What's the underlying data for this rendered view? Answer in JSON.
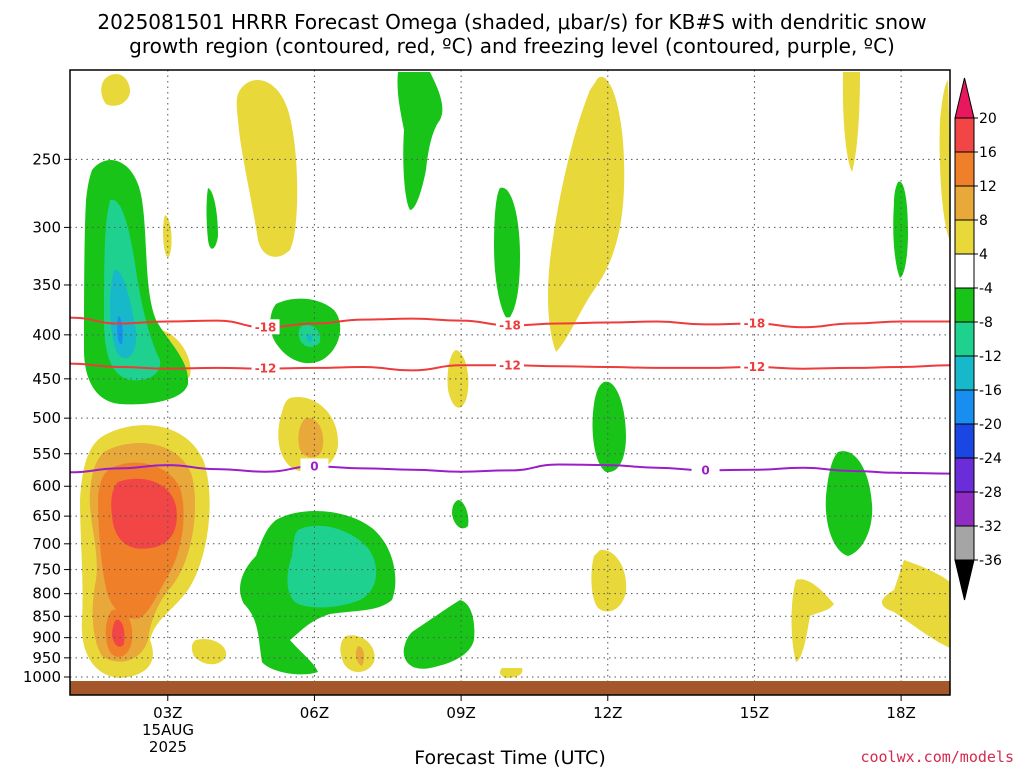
{
  "chart": {
    "title_line1": "2025081501 HRRR Forecast Omega (shaded, μbar/s) for KB#S with dendritic snow",
    "title_line2": "growth region (contoured, red, ºC) and freezing level (contoured, purple, ºC)",
    "xlabel": "Forecast Time (UTC)",
    "date_line1": "15AUG",
    "date_line2": "2025",
    "credit": "coolwx.com/models"
  },
  "chart_data": {
    "type": "heatmap",
    "title": "2025081501 HRRR Forecast Omega (shaded, μbar/s) for KB#S with dendritic snow growth region (contoured, red, ºC) and freezing level (contoured, purple, ºC)",
    "xlabel": "Forecast Time (UTC)",
    "ylabel": "",
    "x_unit": "hours UTC since 00Z 15AUG2025",
    "xlim": [
      1,
      19
    ],
    "y_scale": "log",
    "ylim": [
      1000,
      200
    ],
    "x_ticks": [
      {
        "value": 3,
        "label": "03Z"
      },
      {
        "value": 6,
        "label": "06Z"
      },
      {
        "value": 9,
        "label": "09Z"
      },
      {
        "value": 12,
        "label": "12Z"
      },
      {
        "value": 15,
        "label": "15Z"
      },
      {
        "value": 18,
        "label": "18Z"
      }
    ],
    "y_ticks": [
      250,
      300,
      350,
      400,
      450,
      500,
      550,
      600,
      650,
      700,
      750,
      800,
      850,
      900,
      950,
      1000
    ],
    "grid": true,
    "colorbar": {
      "labels": [
        20,
        16,
        12,
        8,
        4,
        -4,
        -8,
        -12,
        -16,
        -20,
        -24,
        -28,
        -32,
        -36
      ],
      "colors": [
        "#e8185e",
        "#f24545",
        "#f07f2a",
        "#e8a83a",
        "#e8d83a",
        "#ffffff",
        "#17c417",
        "#1ed18f",
        "#17b8c9",
        "#188ff0",
        "#1a46e3",
        "#6b2cd9",
        "#8f2cc2",
        "#a5a5a5",
        "#000000"
      ]
    },
    "contours": [
      {
        "name": "-18",
        "color": "#ee3b3b",
        "labels": [
          "-18",
          "-18",
          "-18"
        ],
        "points": [
          [
            1,
            382
          ],
          [
            2,
            388
          ],
          [
            3,
            386
          ],
          [
            4,
            385
          ],
          [
            5,
            392
          ],
          [
            6,
            388
          ],
          [
            7,
            384
          ],
          [
            8,
            383
          ],
          [
            9,
            385
          ],
          [
            10,
            390
          ],
          [
            11,
            388
          ],
          [
            12,
            387
          ],
          [
            13,
            386
          ],
          [
            14,
            389
          ],
          [
            15,
            388
          ],
          [
            16,
            392
          ],
          [
            17,
            388
          ],
          [
            18,
            386
          ],
          [
            19,
            386
          ]
        ]
      },
      {
        "name": "-12",
        "color": "#ee3b3b",
        "labels": [
          "-12",
          "-12",
          "-12"
        ],
        "points": [
          [
            1,
            432
          ],
          [
            2,
            436
          ],
          [
            3,
            438
          ],
          [
            4,
            437
          ],
          [
            5,
            438
          ],
          [
            6,
            437
          ],
          [
            7,
            436
          ],
          [
            8,
            440
          ],
          [
            9,
            434
          ],
          [
            10,
            434
          ],
          [
            11,
            435
          ],
          [
            12,
            436
          ],
          [
            13,
            437
          ],
          [
            14,
            437
          ],
          [
            15,
            436
          ],
          [
            16,
            438
          ],
          [
            17,
            437
          ],
          [
            18,
            436
          ],
          [
            19,
            434
          ]
        ]
      },
      {
        "name": "0",
        "color": "#9b1fc8",
        "labels": [
          "0",
          "0"
        ],
        "points": [
          [
            1,
            578
          ],
          [
            2,
            572
          ],
          [
            3,
            567
          ],
          [
            4,
            573
          ],
          [
            5,
            577
          ],
          [
            6,
            569
          ],
          [
            7,
            572
          ],
          [
            8,
            574
          ],
          [
            9,
            577
          ],
          [
            10,
            575
          ],
          [
            11,
            566
          ],
          [
            12,
            567
          ],
          [
            13,
            571
          ],
          [
            14,
            575
          ],
          [
            15,
            574
          ],
          [
            16,
            571
          ],
          [
            17,
            576
          ],
          [
            18,
            579
          ],
          [
            19,
            580
          ]
        ]
      }
    ],
    "omega_regions": [
      {
        "level": 4,
        "color": "#e8d83a",
        "center": [
          2.1,
          720
        ],
        "half_width_h": 1.0,
        "p_range": [
          990,
          440
        ]
      },
      {
        "level": 8,
        "color": "#e8a83a",
        "center": [
          2.2,
          680
        ],
        "half_width_h": 0.7,
        "p_range": [
          970,
          480
        ]
      },
      {
        "level": 12,
        "color": "#f07f2a",
        "center": [
          2.4,
          650
        ],
        "half_width_h": 0.55,
        "p_range": [
          870,
          530
        ]
      },
      {
        "level": 16,
        "color": "#f24545",
        "center": [
          2.6,
          645
        ],
        "half_width_h": 0.4,
        "p_range": [
          730,
          580
        ]
      },
      {
        "level": -4,
        "color": "#17c417",
        "center": [
          2.1,
          360
        ],
        "half_width_h": 0.95,
        "p_range": [
          510,
          260
        ]
      },
      {
        "level": -8,
        "color": "#1ed18f",
        "center": [
          2.1,
          380
        ],
        "half_width_h": 0.55,
        "p_range": [
          470,
          290
        ]
      },
      {
        "level": -4,
        "color": "#17c417",
        "center": [
          6.3,
          760
        ],
        "half_width_h": 1.3,
        "p_range": [
          960,
          620
        ]
      },
      {
        "level": -8,
        "color": "#1ed18f",
        "center": [
          6.6,
          760
        ],
        "half_width_h": 0.7,
        "p_range": [
          850,
          680
        ]
      }
    ]
  }
}
